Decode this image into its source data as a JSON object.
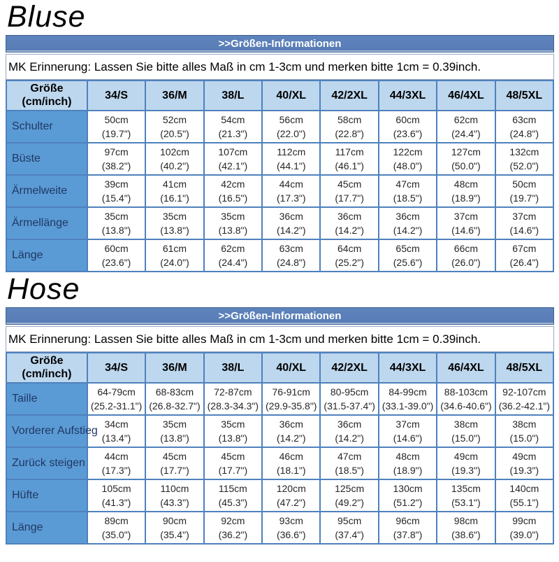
{
  "colors": {
    "header_bar": "#5b7fb9",
    "header_row_bg": "#bdd7ee",
    "row_label_bg": "#5b9bd5",
    "border": "#4f81bd",
    "bar_text": "#ffffff"
  },
  "sections": [
    {
      "title": "Bluse",
      "header_bar": ">>Größen-Informationen",
      "note": "MK Erinnerung: Lassen Sie bitte alles Maß in cm 1-3cm und merken bitte 1cm = 0.39inch.",
      "size_header": {
        "line1": "Größe",
        "line2": "(cm/inch)"
      },
      "columns": [
        "34/S",
        "36/M",
        "38/L",
        "40/XL",
        "42/2XL",
        "44/3XL",
        "46/4XL",
        "48/5XL"
      ],
      "rows": [
        {
          "label": "Schulter",
          "cells": [
            {
              "cm": "50cm",
              "inch": "(19.7\")"
            },
            {
              "cm": "52cm",
              "inch": "(20.5\")"
            },
            {
              "cm": "54cm",
              "inch": "(21.3\")"
            },
            {
              "cm": "56cm",
              "inch": "(22.0\")"
            },
            {
              "cm": "58cm",
              "inch": "(22.8\")"
            },
            {
              "cm": "60cm",
              "inch": "(23.6\")"
            },
            {
              "cm": "62cm",
              "inch": "(24.4\")"
            },
            {
              "cm": "63cm",
              "inch": "(24.8\")"
            }
          ]
        },
        {
          "label": "Büste",
          "cells": [
            {
              "cm": "97cm",
              "inch": "(38.2\")"
            },
            {
              "cm": "102cm",
              "inch": "(40.2\")"
            },
            {
              "cm": "107cm",
              "inch": "(42.1\")"
            },
            {
              "cm": "112cm",
              "inch": "(44.1\")"
            },
            {
              "cm": "117cm",
              "inch": "(46.1\")"
            },
            {
              "cm": "122cm",
              "inch": "(48.0\")"
            },
            {
              "cm": "127cm",
              "inch": "(50.0\")"
            },
            {
              "cm": "132cm",
              "inch": "(52.0\")"
            }
          ]
        },
        {
          "label": "Ärmelweite",
          "cells": [
            {
              "cm": "39cm",
              "inch": "(15.4\")"
            },
            {
              "cm": "41cm",
              "inch": "(16.1\")"
            },
            {
              "cm": "42cm",
              "inch": "(16.5\")"
            },
            {
              "cm": "44cm",
              "inch": "(17.3\")"
            },
            {
              "cm": "45cm",
              "inch": "(17.7\")"
            },
            {
              "cm": "47cm",
              "inch": "(18.5\")"
            },
            {
              "cm": "48cm",
              "inch": "(18.9\")"
            },
            {
              "cm": "50cm",
              "inch": "(19.7\")"
            }
          ]
        },
        {
          "label": "Ärmellänge",
          "cells": [
            {
              "cm": "35cm",
              "inch": "(13.8\")"
            },
            {
              "cm": "35cm",
              "inch": "(13.8\")"
            },
            {
              "cm": "35cm",
              "inch": "(13.8\")"
            },
            {
              "cm": "36cm",
              "inch": "(14.2\")"
            },
            {
              "cm": "36cm",
              "inch": "(14.2\")"
            },
            {
              "cm": "36cm",
              "inch": "(14.2\")"
            },
            {
              "cm": "37cm",
              "inch": "(14.6\")"
            },
            {
              "cm": "37cm",
              "inch": "(14.6\")"
            }
          ]
        },
        {
          "label": "Länge",
          "cells": [
            {
              "cm": "60cm",
              "inch": "(23.6\")"
            },
            {
              "cm": "61cm",
              "inch": "(24.0\")"
            },
            {
              "cm": "62cm",
              "inch": "(24.4\")"
            },
            {
              "cm": "63cm",
              "inch": "(24.8\")"
            },
            {
              "cm": "64cm",
              "inch": "(25.2\")"
            },
            {
              "cm": "65cm",
              "inch": "(25.6\")"
            },
            {
              "cm": "66cm",
              "inch": "(26.0\")"
            },
            {
              "cm": "67cm",
              "inch": "(26.4\")"
            }
          ]
        }
      ]
    },
    {
      "title": "Hose",
      "header_bar": ">>Größen-Informationen",
      "note": "MK Erinnerung: Lassen Sie bitte alles Maß in cm 1-3cm und merken bitte 1cm = 0.39inch.",
      "size_header": {
        "line1": "Größe",
        "line2": "(cm/inch)"
      },
      "columns": [
        "34/S",
        "36/M",
        "38/L",
        "40/XL",
        "42/2XL",
        "44/3XL",
        "46/4XL",
        "48/5XL"
      ],
      "rows": [
        {
          "label": "Taille",
          "cells": [
            {
              "cm": "64-79cm",
              "inch": "(25.2-31.1\")"
            },
            {
              "cm": "68-83cm",
              "inch": "(26.8-32.7\")"
            },
            {
              "cm": "72-87cm",
              "inch": "(28.3-34.3\")"
            },
            {
              "cm": "76-91cm",
              "inch": "(29.9-35.8\")"
            },
            {
              "cm": "80-95cm",
              "inch": "(31.5-37.4\")"
            },
            {
              "cm": "84-99cm",
              "inch": "(33.1-39.0\")"
            },
            {
              "cm": "88-103cm",
              "inch": "(34.6-40.6\")"
            },
            {
              "cm": "92-107cm",
              "inch": "(36.2-42.1\")"
            }
          ]
        },
        {
          "label": "Vorderer Aufstieg",
          "cells": [
            {
              "cm": "34cm",
              "inch": "(13.4\")"
            },
            {
              "cm": "35cm",
              "inch": "(13.8\")"
            },
            {
              "cm": "35cm",
              "inch": "(13.8\")"
            },
            {
              "cm": "36cm",
              "inch": "(14.2\")"
            },
            {
              "cm": "36cm",
              "inch": "(14.2\")"
            },
            {
              "cm": "37cm",
              "inch": "(14.6\")"
            },
            {
              "cm": "38cm",
              "inch": "(15.0\")"
            },
            {
              "cm": "38cm",
              "inch": "(15.0\")"
            }
          ]
        },
        {
          "label": "Zurück steigen",
          "cells": [
            {
              "cm": "44cm",
              "inch": "(17.3\")"
            },
            {
              "cm": "45cm",
              "inch": "(17.7\")"
            },
            {
              "cm": "45cm",
              "inch": "(17.7\")"
            },
            {
              "cm": "46cm",
              "inch": "(18.1\")"
            },
            {
              "cm": "47cm",
              "inch": "(18.5\")"
            },
            {
              "cm": "48cm",
              "inch": "(18.9\")"
            },
            {
              "cm": "49cm",
              "inch": "(19.3\")"
            },
            {
              "cm": "49cm",
              "inch": "(19.3\")"
            }
          ]
        },
        {
          "label": "Hüfte",
          "cells": [
            {
              "cm": "105cm",
              "inch": "(41.3\")"
            },
            {
              "cm": "110cm",
              "inch": "(43.3\")"
            },
            {
              "cm": "115cm",
              "inch": "(45.3\")"
            },
            {
              "cm": "120cm",
              "inch": "(47.2\")"
            },
            {
              "cm": "125cm",
              "inch": "(49.2\")"
            },
            {
              "cm": "130cm",
              "inch": "(51.2\")"
            },
            {
              "cm": "135cm",
              "inch": "(53.1\")"
            },
            {
              "cm": "140cm",
              "inch": "(55.1\")"
            }
          ]
        },
        {
          "label": "Länge",
          "cells": [
            {
              "cm": "89cm",
              "inch": "(35.0\")"
            },
            {
              "cm": "90cm",
              "inch": "(35.4\")"
            },
            {
              "cm": "92cm",
              "inch": "(36.2\")"
            },
            {
              "cm": "93cm",
              "inch": "(36.6\")"
            },
            {
              "cm": "95cm",
              "inch": "(37.4\")"
            },
            {
              "cm": "96cm",
              "inch": "(37.8\")"
            },
            {
              "cm": "98cm",
              "inch": "(38.6\")"
            },
            {
              "cm": "99cm",
              "inch": "(39.0\")"
            }
          ]
        }
      ]
    }
  ]
}
